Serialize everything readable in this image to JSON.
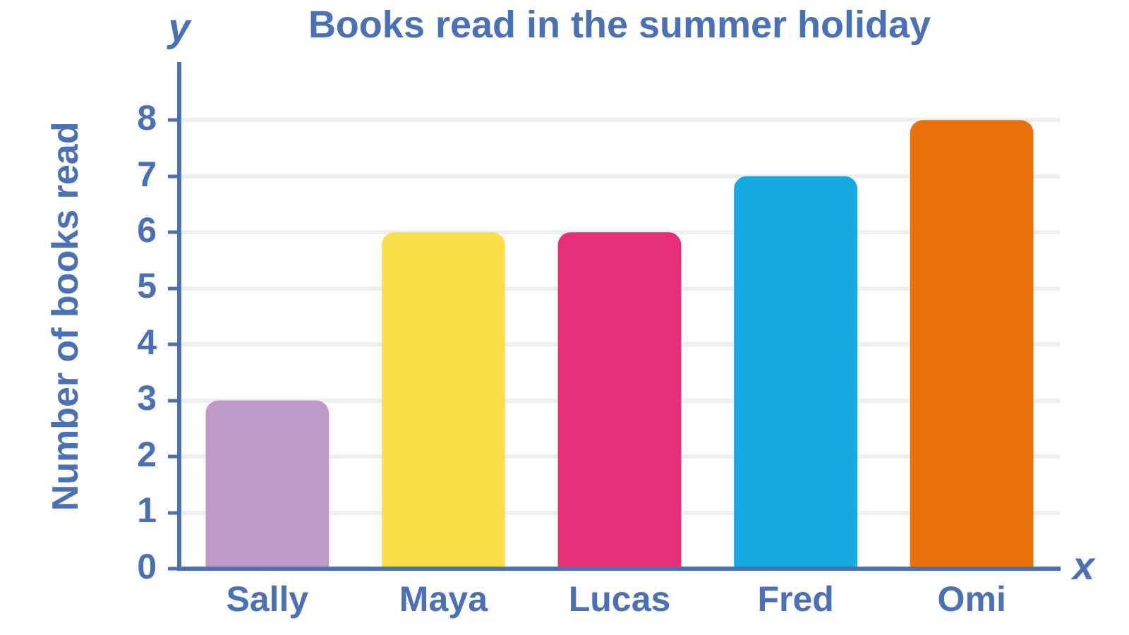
{
  "chart_data": {
    "type": "bar",
    "title": "Books read in the summer holiday",
    "categories": [
      "Sally",
      "Maya",
      "Lucas",
      "Fred",
      "Omi"
    ],
    "values": [
      3,
      6,
      6,
      7,
      8
    ],
    "colors": [
      "#bf9ac8",
      "#fcde48",
      "#e62e78",
      "#16a9e1",
      "#e87109"
    ],
    "xlabel": "x",
    "ylabel": "Number of books read",
    "annotations": [
      "y"
    ],
    "ylim": [
      0,
      9
    ],
    "yticks": [
      0,
      1,
      2,
      3,
      4,
      5,
      6,
      7,
      8
    ],
    "grid": "y"
  }
}
